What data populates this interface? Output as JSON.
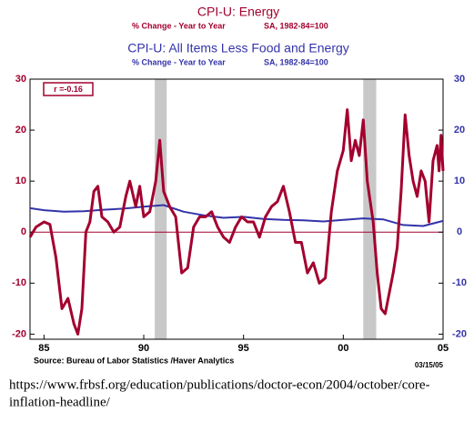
{
  "chart_data": {
    "type": "line",
    "title": "CPI-U: Energy",
    "subtitle": "% Change - Year to Year",
    "subtitle_note": "SA, 1982-84=100",
    "title2": "CPI-U: All Items Less Food and Energy",
    "subtitle2": "% Change - Year to Year",
    "subtitle2_note": "SA, 1982-84=100",
    "annotation": "r =-0.16",
    "source": "Source:  Bureau of Labor Statistics /Haver Analytics",
    "date_stamp": "03/15/05",
    "xlim": [
      1984.3,
      2005
    ],
    "xticks": [
      {
        "value": 1985,
        "label": "85"
      },
      {
        "value": 1990,
        "label": "90"
      },
      {
        "value": 1995,
        "label": "95"
      },
      {
        "value": 2000,
        "label": "00"
      },
      {
        "value": 2005,
        "label": "05"
      }
    ],
    "ylim": [
      -21,
      30
    ],
    "yticks": [
      -20,
      -10,
      0,
      10,
      20,
      30
    ],
    "y2lim": [
      -21,
      30
    ],
    "y2ticks": [
      -20,
      -10,
      0,
      10,
      20,
      30
    ],
    "shaded_regions": [
      [
        1990.55,
        1991.15
      ],
      [
        2001.0,
        2001.65
      ]
    ],
    "series": [
      {
        "name": "CPI-U: Energy",
        "color": "#a3002e",
        "axis": "y",
        "x": [
          1984.3,
          1984.6,
          1985,
          1985.3,
          1985.6,
          1985.9,
          1986.2,
          1986.5,
          1986.7,
          1986.9,
          1987.1,
          1987.3,
          1987.5,
          1987.7,
          1987.9,
          1988.2,
          1988.5,
          1988.8,
          1989.1,
          1989.3,
          1989.6,
          1989.8,
          1990.0,
          1990.3,
          1990.6,
          1990.8,
          1991.0,
          1991.3,
          1991.6,
          1991.9,
          1992.2,
          1992.5,
          1992.8,
          1993.1,
          1993.4,
          1993.7,
          1994.0,
          1994.3,
          1994.6,
          1994.9,
          1995.2,
          1995.5,
          1995.8,
          1996.1,
          1996.4,
          1996.7,
          1997.0,
          1997.3,
          1997.6,
          1997.9,
          1998.2,
          1998.5,
          1998.8,
          1999.1,
          1999.4,
          1999.7,
          2000.0,
          2000.2,
          2000.4,
          2000.6,
          2000.8,
          2001.0,
          2001.2,
          2001.5,
          2001.7,
          2001.9,
          2002.1,
          2002.3,
          2002.5,
          2002.7,
          2002.9,
          2003.1,
          2003.3,
          2003.5,
          2003.7,
          2003.9,
          2004.1,
          2004.3,
          2004.5,
          2004.7,
          2004.8,
          2004.9,
          2005.0
        ],
        "values": [
          -1,
          1,
          2,
          1.5,
          -5,
          -15,
          -13,
          -18,
          -20,
          -15,
          0,
          2,
          8,
          9,
          3,
          2,
          0,
          1,
          7,
          10,
          5,
          9,
          3,
          4,
          10,
          18,
          8,
          5,
          3,
          -8,
          -7,
          1,
          3,
          3,
          4,
          1,
          -1,
          -2,
          1,
          3,
          2,
          2,
          -1,
          3,
          5,
          6,
          9,
          4,
          -2,
          -2,
          -8,
          -6,
          -10,
          -9,
          4,
          12,
          16,
          24,
          14,
          18,
          15,
          22,
          10,
          2,
          -8,
          -15,
          -16,
          -12,
          -8,
          -3,
          8,
          23,
          15,
          10,
          7,
          12,
          10,
          2,
          14,
          17,
          12,
          19,
          12
        ]
      },
      {
        "name": "CPI-U: All Items Less Food and Energy",
        "color": "#3333aa",
        "axis": "y2",
        "x": [
          1984.3,
          1985,
          1986,
          1987,
          1988,
          1989,
          1990,
          1991,
          1992,
          1993,
          1994,
          1995,
          1996,
          1997,
          1998,
          1999,
          2000,
          2001,
          2002,
          2003,
          2004,
          2005.0
        ],
        "values": [
          4.7,
          4.3,
          4,
          4.1,
          4.4,
          4.6,
          5,
          5.3,
          4,
          3.3,
          2.8,
          3,
          2.6,
          2.4,
          2.3,
          2.1,
          2.4,
          2.7,
          2.5,
          1.4,
          1.2,
          2.2
        ]
      }
    ]
  }
}
